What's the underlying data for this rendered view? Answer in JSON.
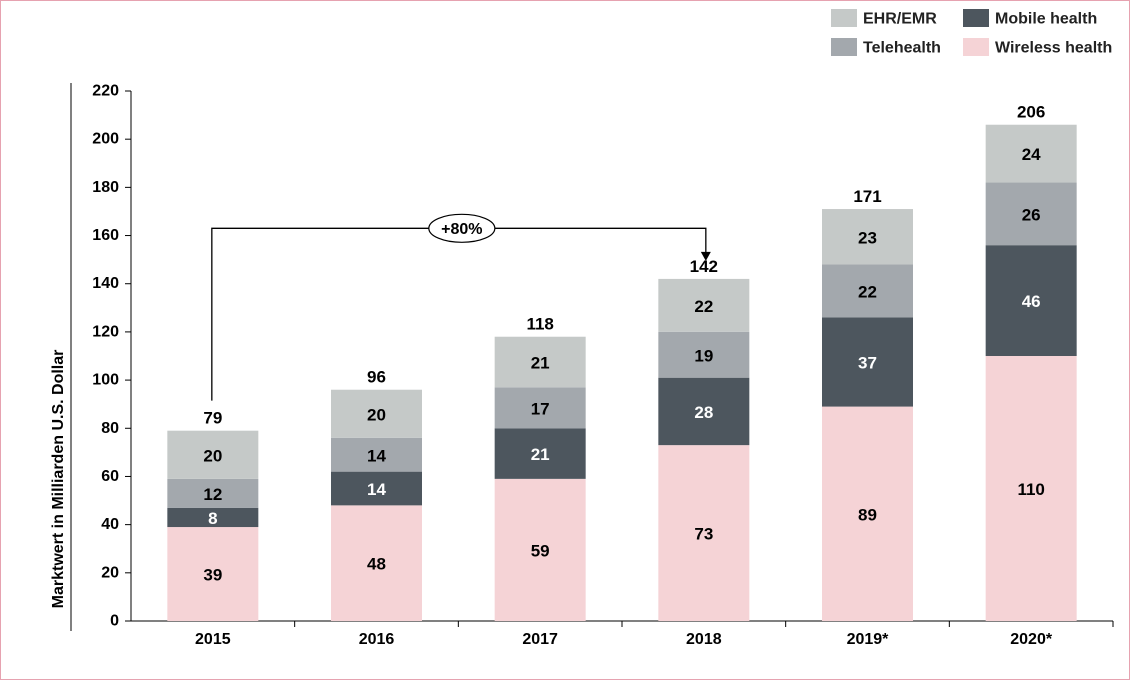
{
  "chart_data": {
    "type": "bar",
    "stacked": true,
    "categories": [
      "2015",
      "2016",
      "2017",
      "2018",
      "2019*",
      "2020*"
    ],
    "series": [
      {
        "name": "Wireless health",
        "values": [
          39,
          48,
          59,
          73,
          89,
          110
        ],
        "color": "#f5d3d6",
        "label_color": "#000000"
      },
      {
        "name": "Mobile health",
        "values": [
          8,
          14,
          21,
          28,
          37,
          46
        ],
        "color": "#4d565e",
        "label_color": "#ffffff"
      },
      {
        "name": "Telehealth",
        "values": [
          12,
          14,
          17,
          19,
          22,
          26
        ],
        "color": "#a3a8ad",
        "label_color": "#000000"
      },
      {
        "name": "EHR/EMR",
        "values": [
          20,
          20,
          21,
          22,
          23,
          24
        ],
        "color": "#c5c9c8",
        "label_color": "#000000"
      }
    ],
    "totals": [
      79,
      96,
      118,
      142,
      171,
      206
    ],
    "ylabel": "Marktwert in Milliarden U.S. Dollar",
    "xlabel": "",
    "ylim": [
      0,
      220
    ],
    "yticks": [
      0,
      20,
      40,
      60,
      80,
      100,
      120,
      140,
      160,
      180,
      200,
      220
    ],
    "grid": false,
    "legend_position": "top-right",
    "legend_order": [
      "EHR/EMR",
      "Mobile health",
      "Telehealth",
      "Wireless health"
    ],
    "annotation": {
      "text": "+80%",
      "from_category": "2015",
      "to_category": "2018"
    }
  }
}
